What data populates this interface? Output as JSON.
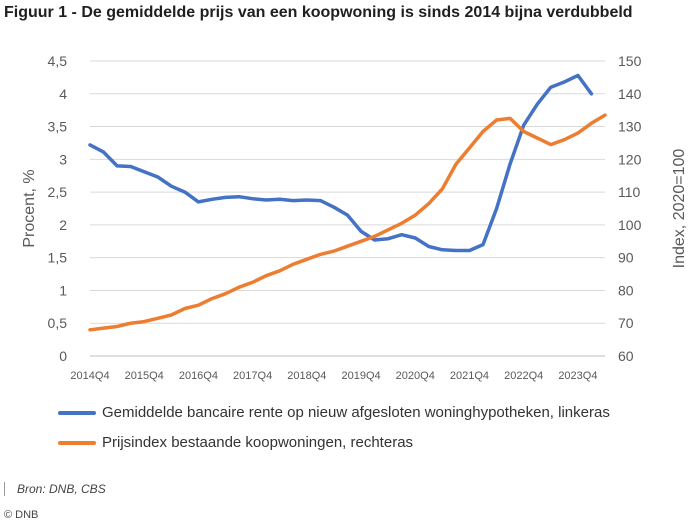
{
  "title": "Figuur 1 - De gemiddelde prijs van een koopwoning is sinds 2014 bijna verdubbeld",
  "source": "Bron: DNB, CBS",
  "copyright": "© DNB",
  "colors": {
    "rente": "#4472c4",
    "index": "#ed7d31",
    "grid": "#d9d9d9",
    "text": "#595959"
  },
  "chart_data": {
    "type": "line",
    "ylabel_left": "Procent, %",
    "ylabel_right": "Index, 2020=100",
    "ylim_left": [
      0,
      4.5
    ],
    "ylim_right": [
      60,
      150
    ],
    "yticks_left": [
      "0",
      "0,5",
      "1",
      "1,5",
      "2",
      "2,5",
      "3",
      "3,5",
      "4",
      "4,5"
    ],
    "yticks_right": [
      "60",
      "70",
      "80",
      "90",
      "100",
      "110",
      "120",
      "130",
      "140",
      "150"
    ],
    "xticks": [
      "2014Q4",
      "2015Q4",
      "2016Q4",
      "2017Q4",
      "2018Q4",
      "2019Q4",
      "2020Q4",
      "2021Q4",
      "2022Q4",
      "2023Q4"
    ],
    "grid": "horizontal",
    "legend_position": "bottom",
    "x": [
      "2014Q4",
      "2015Q1",
      "2015Q2",
      "2015Q3",
      "2015Q4",
      "2016Q1",
      "2016Q2",
      "2016Q3",
      "2016Q4",
      "2017Q1",
      "2017Q2",
      "2017Q3",
      "2017Q4",
      "2018Q1",
      "2018Q2",
      "2018Q3",
      "2018Q4",
      "2019Q1",
      "2019Q2",
      "2019Q3",
      "2019Q4",
      "2020Q1",
      "2020Q2",
      "2020Q3",
      "2020Q4",
      "2021Q1",
      "2021Q2",
      "2021Q3",
      "2021Q4",
      "2022Q1",
      "2022Q2",
      "2022Q3",
      "2022Q4",
      "2023Q1",
      "2023Q2",
      "2023Q3",
      "2023Q4",
      "2024Q1",
      "2024Q2"
    ],
    "series": [
      {
        "name": "Gemiddelde bancaire rente op nieuw afgesloten woninghypotheken, linkeras",
        "axis": "left",
        "values": [
          3.22,
          3.11,
          2.9,
          2.89,
          2.81,
          2.73,
          2.59,
          2.5,
          2.35,
          2.39,
          2.42,
          2.43,
          2.4,
          2.38,
          2.39,
          2.37,
          2.38,
          2.37,
          2.27,
          2.15,
          1.9,
          1.77,
          1.79,
          1.85,
          1.8,
          1.67,
          1.62,
          1.61,
          1.61,
          1.7,
          2.25,
          2.93,
          3.52,
          3.84,
          4.1,
          4.18,
          4.28,
          4.0,
          null
        ]
      },
      {
        "name": "Prijsindex bestaande koopwoningen, rechteras",
        "axis": "right",
        "values": [
          68,
          68.5,
          69,
          70,
          70.5,
          71.5,
          72.5,
          74.5,
          75.5,
          77.5,
          79,
          81,
          82.5,
          84.5,
          86,
          88,
          89.5,
          91,
          92,
          93.5,
          95,
          96.5,
          98.5,
          100.5,
          103,
          106.5,
          111,
          118.5,
          123.5,
          128.5,
          132,
          132.5,
          128.5,
          126.5,
          124.5,
          126,
          128,
          131,
          133.5
        ]
      }
    ]
  }
}
